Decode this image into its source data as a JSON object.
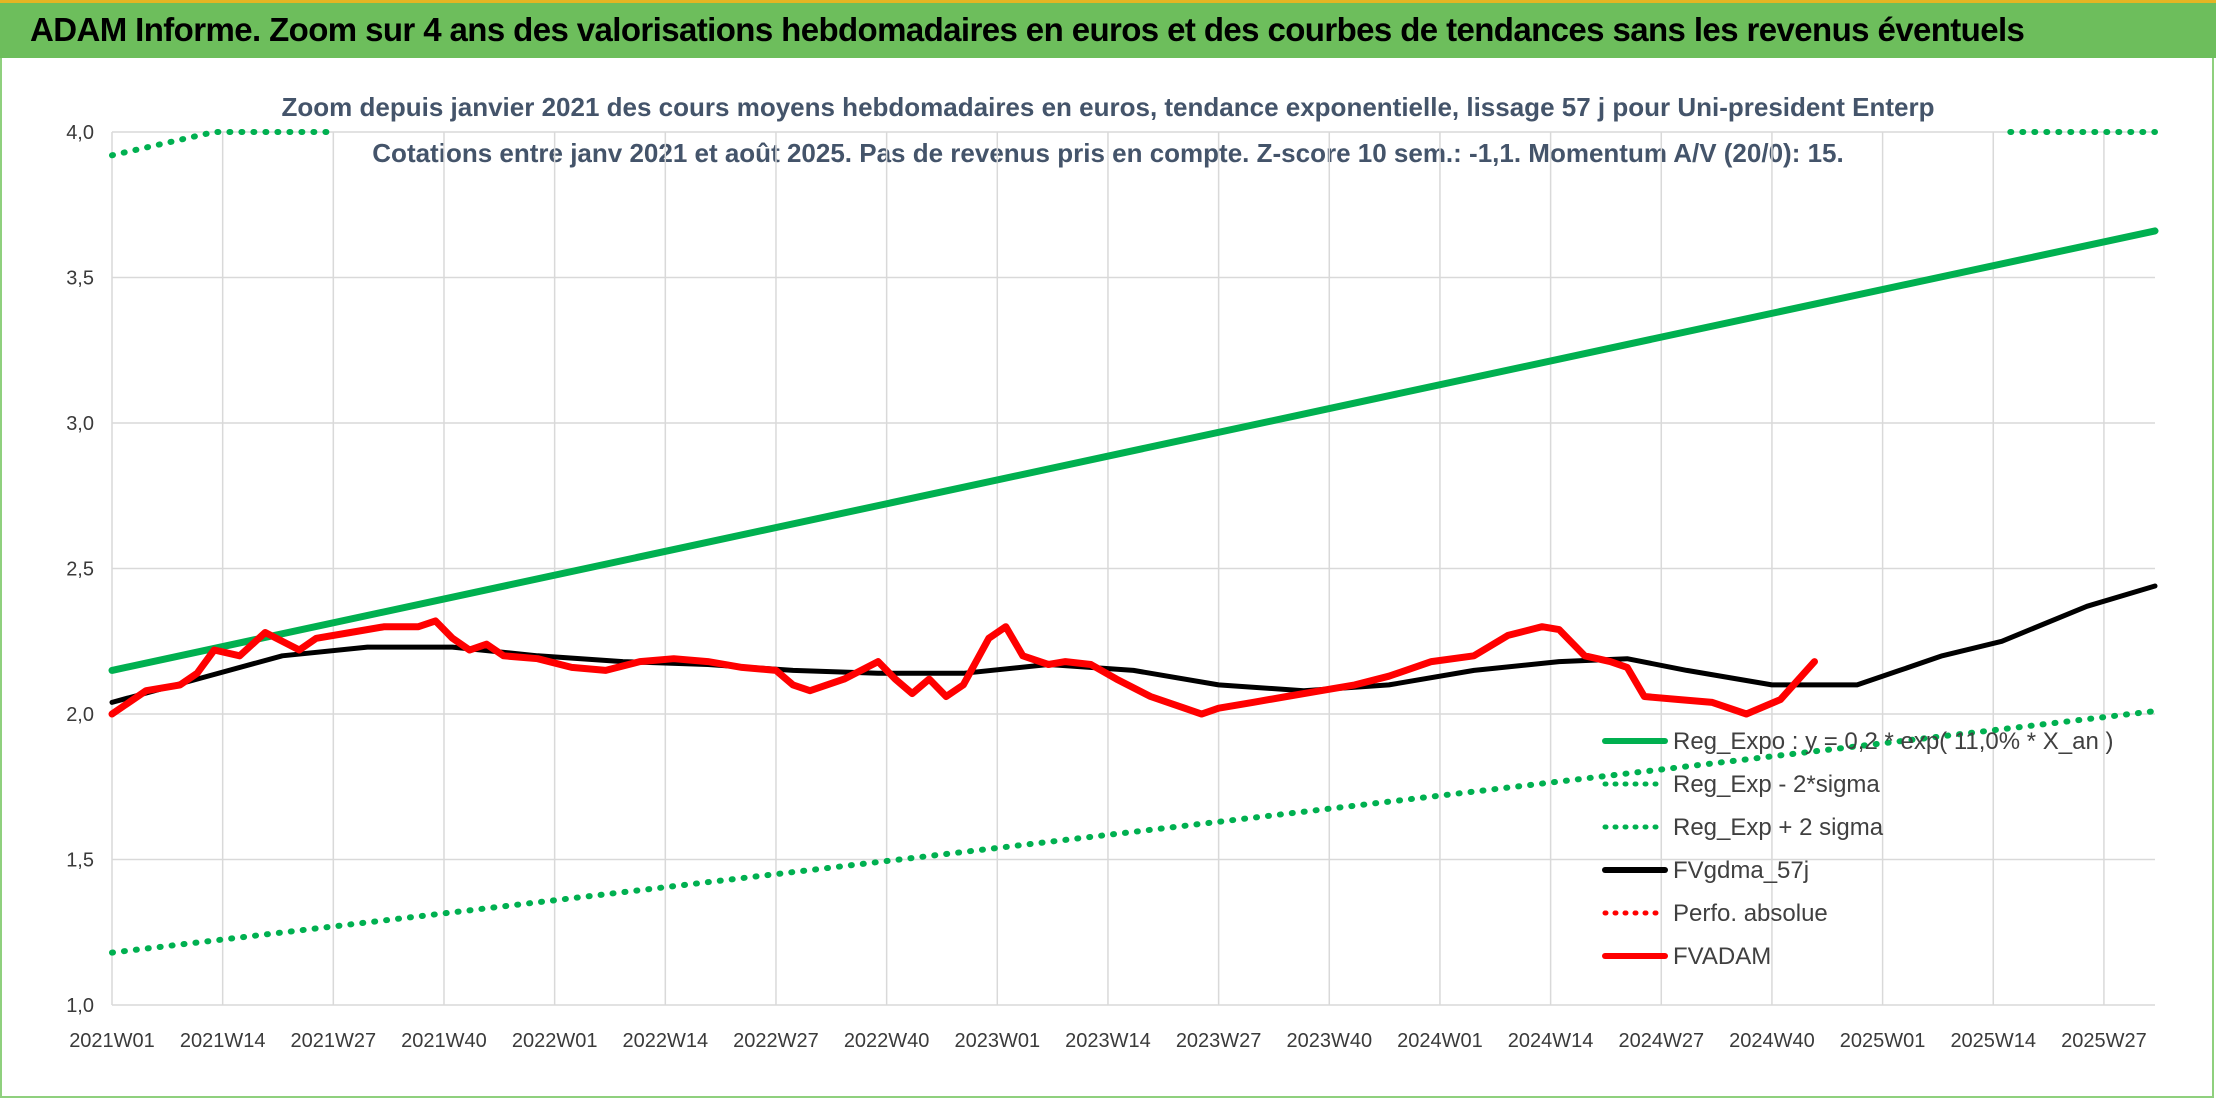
{
  "header": {
    "title": "ADAM Informe. Zoom sur 4 ans des valorisations hebdomadaires en euros et des courbes de tendances sans les revenus éventuels"
  },
  "chart_data": {
    "type": "line",
    "title": "Zoom depuis janvier 2021 des cours moyens hebdomadaires en euros, tendance exponentielle, lissage 57 j pour Uni-president Enterp",
    "subtitle": "Cotations entre janv 2021 et août 2025. Pas de revenus pris en compte. Z-score 10 sem.: -1,1. Momentum A/V (20/0): 15.",
    "ylim": [
      1.0,
      4.0
    ],
    "yticks": [
      "1,0",
      "1,5",
      "2,0",
      "2,5",
      "3,0",
      "3,5",
      "4,0"
    ],
    "xticks": [
      "2021W01",
      "2021W14",
      "2021W27",
      "2021W40",
      "2022W01",
      "2022W14",
      "2022W27",
      "2022W40",
      "2023W01",
      "2023W14",
      "2023W27",
      "2023W40",
      "2024W01",
      "2024W14",
      "2024W27",
      "2024W40",
      "2025W01",
      "2025W14",
      "2025W27"
    ],
    "week_count": 241,
    "grid": true,
    "legend_position": "bottom-right",
    "colors": {
      "green": "#00b050",
      "red": "#ff0000",
      "black": "#000000"
    },
    "series": [
      {
        "name": "Reg_Expo : y = 0,2 * exp( 11,0% * X_an )",
        "style": "solid",
        "color": "#00b050",
        "points": [
          [
            0,
            2.15
          ],
          [
            240,
            3.66
          ]
        ]
      },
      {
        "name": "Reg_Exp - 2*sigma",
        "style": "dotted",
        "color": "#00b050",
        "points": [
          [
            0,
            1.18
          ],
          [
            240,
            2.01
          ]
        ]
      },
      {
        "name": "Reg_Exp + 2 sigma",
        "style": "dotted",
        "color": "#00b050",
        "points": [
          [
            0,
            3.92
          ],
          [
            12,
            4.0
          ],
          [
            26,
            4.0
          ]
        ],
        "points_end": [
          [
            223,
            4.0
          ],
          [
            240,
            4.0
          ]
        ]
      },
      {
        "name": "FVgdma_57j",
        "style": "solid",
        "color": "#000000",
        "points": [
          [
            0,
            2.04
          ],
          [
            10,
            2.12
          ],
          [
            20,
            2.2
          ],
          [
            30,
            2.23
          ],
          [
            40,
            2.23
          ],
          [
            50,
            2.2
          ],
          [
            60,
            2.18
          ],
          [
            70,
            2.17
          ],
          [
            80,
            2.15
          ],
          [
            90,
            2.14
          ],
          [
            100,
            2.14
          ],
          [
            110,
            2.17
          ],
          [
            120,
            2.15
          ],
          [
            130,
            2.1
          ],
          [
            140,
            2.08
          ],
          [
            150,
            2.1
          ],
          [
            160,
            2.15
          ],
          [
            170,
            2.18
          ],
          [
            178,
            2.19
          ],
          [
            185,
            2.15
          ],
          [
            195,
            2.1
          ],
          [
            205,
            2.1
          ],
          [
            210,
            2.15
          ],
          [
            215,
            2.2
          ],
          [
            222,
            2.25
          ],
          [
            232,
            2.37
          ],
          [
            240,
            2.44
          ]
        ],
        "points_ext": [
          [
            232,
            2.37
          ],
          [
            240,
            2.44
          ]
        ]
      },
      {
        "name": "Perfo. absolue",
        "style": "dotted",
        "color": "#ff0000",
        "points": []
      },
      {
        "name": "FVADAM",
        "style": "solid",
        "color": "#ff0000",
        "points": [
          [
            0,
            2.0
          ],
          [
            4,
            2.08
          ],
          [
            8,
            2.1
          ],
          [
            10,
            2.14
          ],
          [
            12,
            2.22
          ],
          [
            15,
            2.2
          ],
          [
            18,
            2.28
          ],
          [
            20,
            2.25
          ],
          [
            22,
            2.22
          ],
          [
            24,
            2.26
          ],
          [
            28,
            2.28
          ],
          [
            32,
            2.3
          ],
          [
            36,
            2.3
          ],
          [
            38,
            2.32
          ],
          [
            40,
            2.26
          ],
          [
            42,
            2.22
          ],
          [
            44,
            2.24
          ],
          [
            46,
            2.2
          ],
          [
            50,
            2.19
          ],
          [
            54,
            2.16
          ],
          [
            58,
            2.15
          ],
          [
            62,
            2.18
          ],
          [
            66,
            2.19
          ],
          [
            70,
            2.18
          ],
          [
            74,
            2.16
          ],
          [
            78,
            2.15
          ],
          [
            80,
            2.1
          ],
          [
            82,
            2.08
          ],
          [
            86,
            2.12
          ],
          [
            90,
            2.18
          ],
          [
            92,
            2.12
          ],
          [
            94,
            2.07
          ],
          [
            96,
            2.12
          ],
          [
            98,
            2.06
          ],
          [
            100,
            2.1
          ],
          [
            103,
            2.26
          ],
          [
            105,
            2.3
          ],
          [
            107,
            2.2
          ],
          [
            110,
            2.17
          ],
          [
            112,
            2.18
          ],
          [
            115,
            2.17
          ],
          [
            118,
            2.12
          ],
          [
            122,
            2.06
          ],
          [
            126,
            2.02
          ],
          [
            128,
            2.0
          ],
          [
            130,
            2.02
          ],
          [
            134,
            2.04
          ],
          [
            138,
            2.06
          ],
          [
            142,
            2.08
          ],
          [
            146,
            2.1
          ],
          [
            150,
            2.13
          ],
          [
            155,
            2.18
          ],
          [
            160,
            2.2
          ],
          [
            164,
            2.27
          ],
          [
            168,
            2.3
          ],
          [
            170,
            2.29
          ],
          [
            173,
            2.2
          ],
          [
            176,
            2.18
          ],
          [
            178,
            2.16
          ],
          [
            180,
            2.06
          ],
          [
            184,
            2.05
          ],
          [
            188,
            2.04
          ],
          [
            192,
            2.0
          ],
          [
            196,
            2.05
          ],
          [
            200,
            2.18
          ]
        ]
      }
    ]
  },
  "legend": {
    "items": [
      {
        "label": "Reg_Expo : y = 0,2 * exp( 11,0% * X_an )",
        "style": "solid",
        "color": "#00b050"
      },
      {
        "label": "Reg_Exp - 2*sigma",
        "style": "dotted",
        "color": "#00b050"
      },
      {
        "label": "Reg_Exp + 2 sigma",
        "style": "dotted",
        "color": "#00b050"
      },
      {
        "label": "FVgdma_57j",
        "style": "solid",
        "color": "#000000"
      },
      {
        "label": "Perfo. absolue",
        "style": "dotted",
        "color": "#ff0000"
      },
      {
        "label": "FVADAM",
        "style": "solid",
        "color": "#ff0000"
      }
    ]
  }
}
